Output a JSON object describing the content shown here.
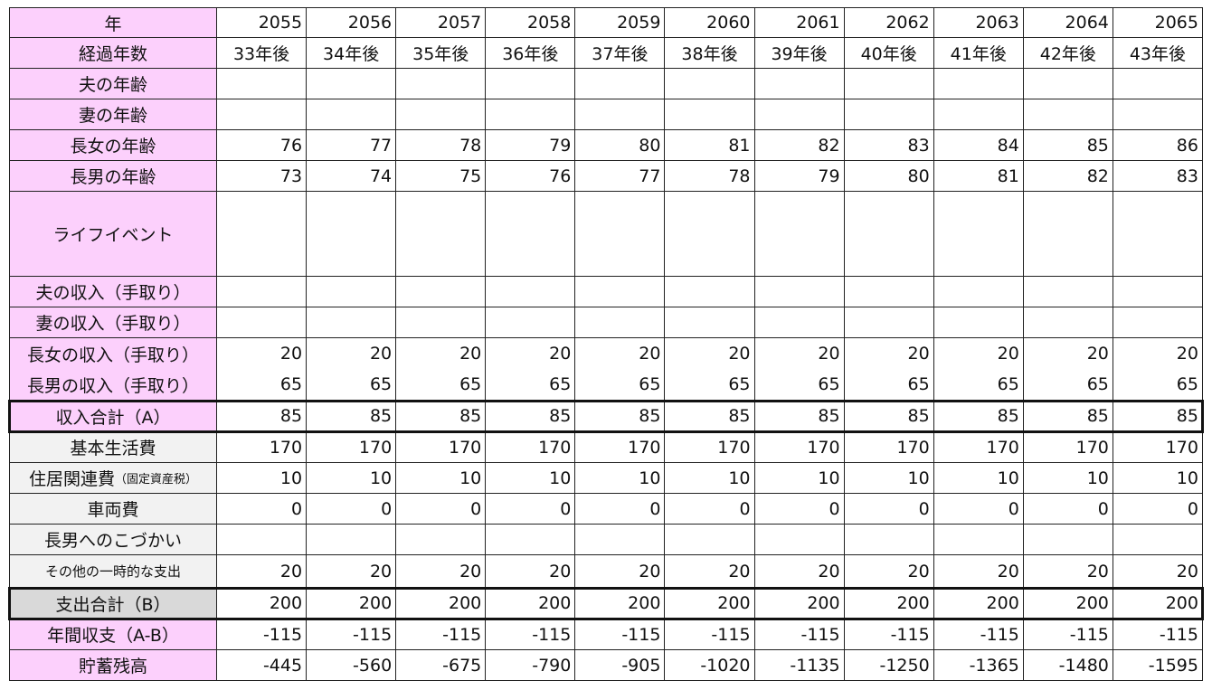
{
  "table": {
    "header": {
      "label": "年",
      "cells": [
        2055,
        2056,
        2057,
        2058,
        2059,
        2060,
        2061,
        2062,
        2063,
        2064,
        2065
      ]
    },
    "rows": [
      {
        "label": "経過年数",
        "cells": [
          "33年後",
          "34年後",
          "35年後",
          "36年後",
          "37年後",
          "38年後",
          "39年後",
          "40年後",
          "41年後",
          "42年後",
          "43年後"
        ]
      },
      {
        "label": "夫の年齢",
        "cells": [
          null,
          null,
          null,
          null,
          null,
          null,
          null,
          null,
          null,
          null,
          null
        ]
      },
      {
        "label": "妻の年齢",
        "cells": [
          null,
          null,
          null,
          null,
          null,
          null,
          null,
          null,
          null,
          null,
          null
        ]
      },
      {
        "label": "長女の年齢",
        "cells": [
          76,
          77,
          78,
          79,
          80,
          81,
          82,
          83,
          84,
          85,
          86
        ]
      },
      {
        "label": "長男の年齢",
        "cells": [
          73,
          74,
          75,
          76,
          77,
          78,
          79,
          80,
          81,
          82,
          83
        ]
      },
      {
        "label": "ライフイベント",
        "cells": [
          null,
          null,
          null,
          null,
          null,
          null,
          null,
          null,
          null,
          null,
          null
        ]
      },
      {
        "label": "夫の収入（手取り）",
        "cells": [
          null,
          null,
          null,
          null,
          null,
          null,
          null,
          null,
          null,
          null,
          null
        ]
      },
      {
        "label": "妻の収入（手取り）",
        "cells": [
          null,
          null,
          null,
          null,
          null,
          null,
          null,
          null,
          null,
          null,
          null
        ]
      },
      {
        "label": "長女の収入（手取り）",
        "cells": [
          20,
          20,
          20,
          20,
          20,
          20,
          20,
          20,
          20,
          20,
          20
        ]
      },
      {
        "label": "長男の収入（手取り）",
        "cells": [
          65,
          65,
          65,
          65,
          65,
          65,
          65,
          65,
          65,
          65,
          65
        ]
      },
      {
        "label": "収入合計（A）",
        "cells": [
          85,
          85,
          85,
          85,
          85,
          85,
          85,
          85,
          85,
          85,
          85
        ]
      },
      {
        "label": "基本生活費",
        "cells": [
          170,
          170,
          170,
          170,
          170,
          170,
          170,
          170,
          170,
          170,
          170
        ]
      },
      {
        "label": "住居関連費",
        "label_note": "（固定資産税）",
        "cells": [
          10,
          10,
          10,
          10,
          10,
          10,
          10,
          10,
          10,
          10,
          10
        ]
      },
      {
        "label": "車両費",
        "cells": [
          0,
          0,
          0,
          0,
          0,
          0,
          0,
          0,
          0,
          0,
          0
        ]
      },
      {
        "label": "長男へのこづかい",
        "cells": [
          null,
          null,
          null,
          null,
          null,
          null,
          null,
          null,
          null,
          null,
          null
        ]
      },
      {
        "label": "その他の一時的な支出",
        "cells": [
          20,
          20,
          20,
          20,
          20,
          20,
          20,
          20,
          20,
          20,
          20
        ]
      },
      {
        "label": "支出合計（B）",
        "cells": [
          200,
          200,
          200,
          200,
          200,
          200,
          200,
          200,
          200,
          200,
          200
        ]
      },
      {
        "label": "年間収支（A-B）",
        "cells": [
          -115,
          -115,
          -115,
          -115,
          -115,
          -115,
          -115,
          -115,
          -115,
          -115,
          -115
        ]
      },
      {
        "label": "貯蓄残高",
        "cells": [
          -445,
          -560,
          -675,
          -790,
          -905,
          -1020,
          -1135,
          -1250,
          -1365,
          -1480,
          -1595
        ]
      }
    ]
  }
}
